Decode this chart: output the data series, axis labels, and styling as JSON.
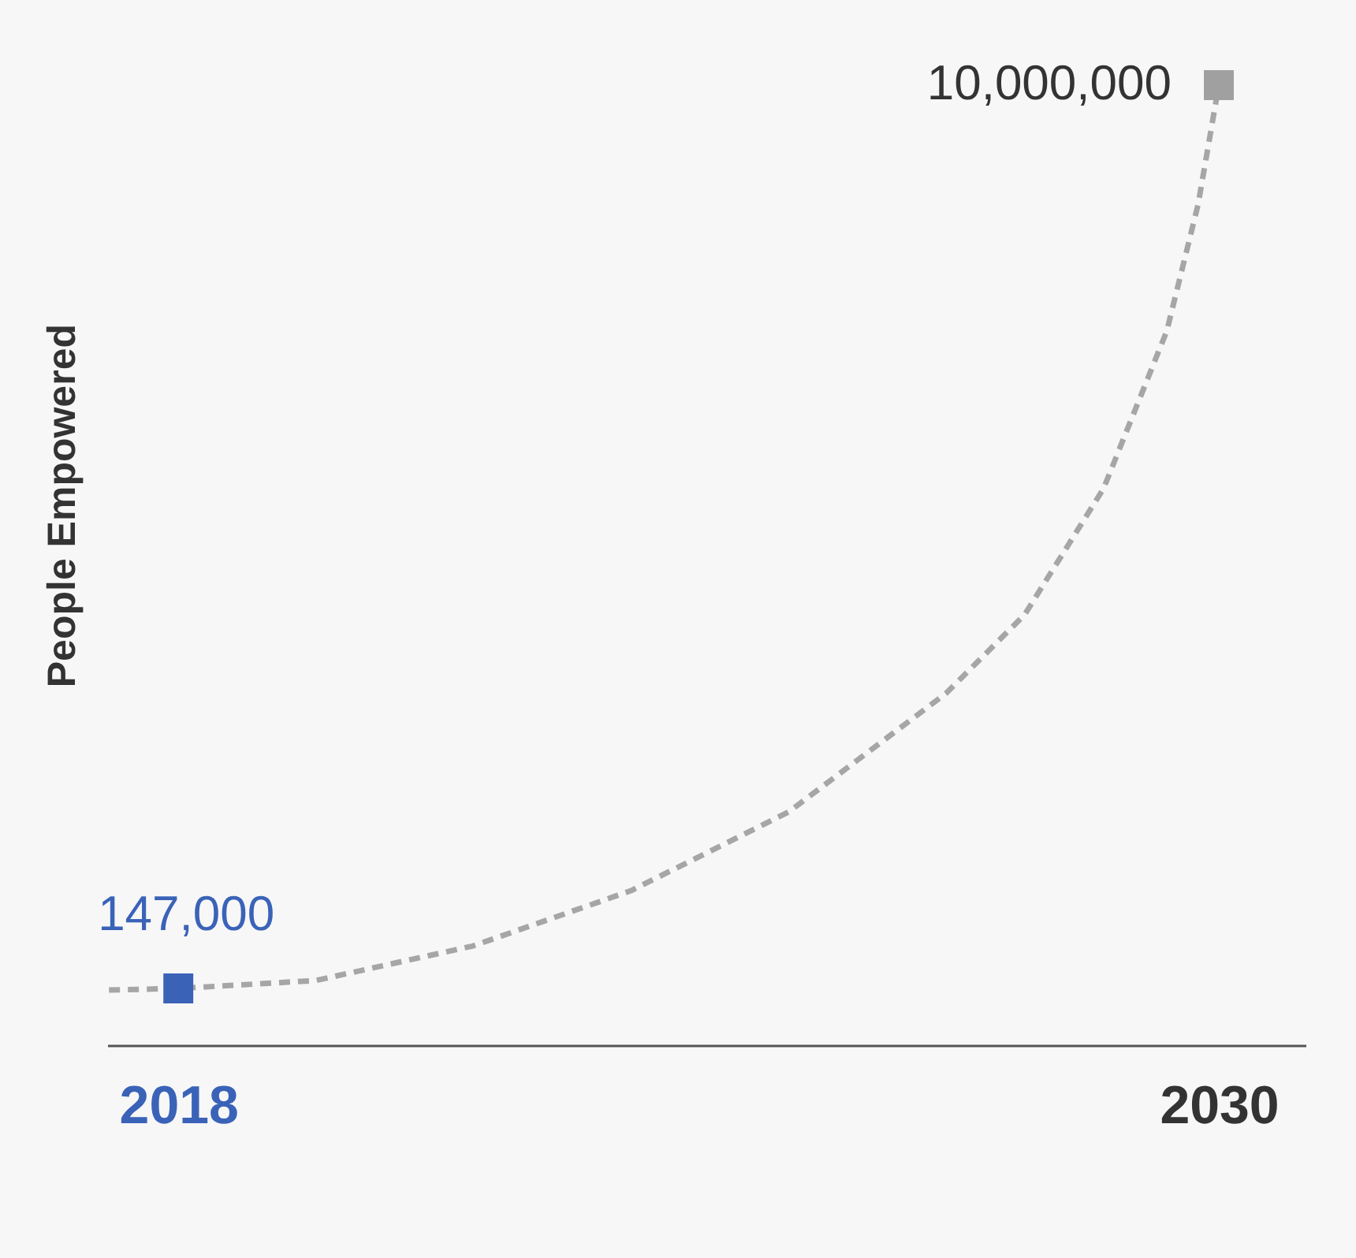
{
  "chart_data": {
    "type": "line",
    "ylabel": "People Empowered",
    "tick_labels": "x",
    "xlim": [
      2017.18,
      2031
    ],
    "xticks": [
      2018,
      2030
    ],
    "series": [
      {
        "type": "line",
        "color": "#a6a6a6",
        "line_style": "dashed",
        "marker": "none",
        "x": [
          2017.2,
          2018,
          2019.58,
          2021.4,
          2023.22,
          2025.04,
          2026.85,
          2027.76,
          2028.67,
          2029.4,
          2029.76,
          2030
        ],
        "values": [
          130000,
          147000,
          233000,
          611000,
          1213000,
          2073000,
          3363000,
          4223000,
          5599000,
          7318000,
          8694000,
          10000000
        ]
      },
      {
        "type": "scatter",
        "marker": "square",
        "colors": [
          "#3a63b8",
          "#a0a0a0"
        ],
        "x": [
          2018,
          2030
        ],
        "values": [
          147000,
          10000000
        ],
        "value_labels": [
          "147,000",
          "10,000,000"
        ]
      }
    ]
  }
}
